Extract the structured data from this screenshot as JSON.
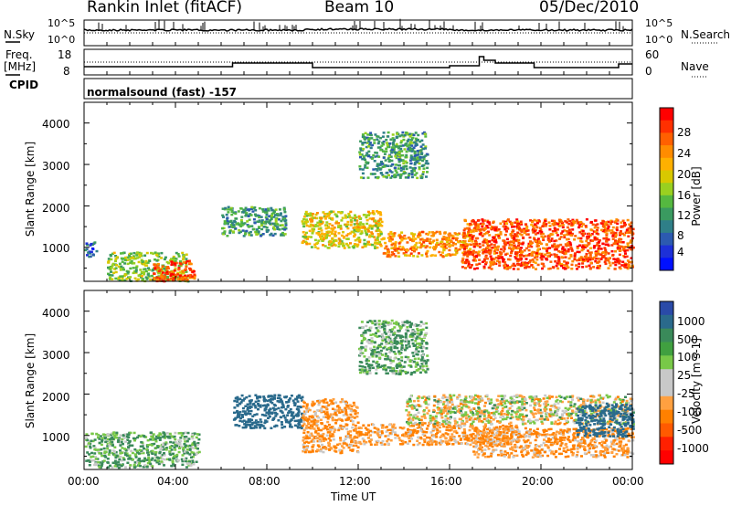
{
  "header": {
    "station": "Rankin Inlet (fitACF)",
    "beam": "Beam 10",
    "date": "05/Dec/2010"
  },
  "noise_panel": {
    "left_label": "N.Sky",
    "left_ticks": [
      "10^5",
      "10^0"
    ],
    "right_ticks": [
      "10^5",
      "10^0"
    ],
    "right_label": "N.Search"
  },
  "freq_panel": {
    "left_label_1": "Freq.",
    "left_label_2": "[MHz]",
    "left_ticks": [
      "18",
      "8"
    ],
    "right_ticks": [
      "60",
      "0"
    ],
    "right_label": "Nave",
    "cpid_label": "CPID"
  },
  "cpid_text": "normalsound (fast) -157",
  "axes": {
    "ylabel": "Slant Range [km]",
    "yticks": [
      "4000",
      "3000",
      "2000",
      "1000"
    ],
    "xticks": [
      "00:00",
      "04:00",
      "08:00",
      "12:00",
      "16:00",
      "20:00",
      "00:00"
    ],
    "xlabel": "Time UT"
  },
  "power_scale": {
    "label": "Power [dB]",
    "ticks": [
      "28",
      "24",
      "20",
      "16",
      "12",
      "8",
      "4"
    ],
    "colors": [
      "#ff0000",
      "#ff3000",
      "#ff6000",
      "#ff8c00",
      "#ffb000",
      "#d8c800",
      "#99d020",
      "#55b840",
      "#3a9a60",
      "#2f7f88",
      "#2c5ab0",
      "#1d30d8",
      "#0010ff"
    ]
  },
  "velocity_scale": {
    "label": "Velocity [m s-1]",
    "ticks": [
      "1000",
      "500",
      "100",
      "25",
      "-25",
      "-100",
      "-500",
      "-1000"
    ],
    "colors": [
      "#2a4aa8",
      "#2a6a8c",
      "#3a8a5a",
      "#40a040",
      "#78c848",
      "#c8c8c8",
      "#c8c8c8",
      "#ffa040",
      "#ff8000",
      "#ff5a00",
      "#ff2000",
      "#ff0000"
    ]
  },
  "chart_data": {
    "type": "heatmap",
    "panels": [
      "Power [dB]",
      "Velocity [m s-1]"
    ],
    "x_range_hours_ut": [
      0,
      24
    ],
    "y_range_km": [
      180,
      4500
    ],
    "power_patches": [
      {
        "t": [
          0.0,
          0.5
        ],
        "r": [
          800,
          1150
        ],
        "power_db": 8
      },
      {
        "t": [
          1.0,
          4.5
        ],
        "r": [
          200,
          900
        ],
        "power_db": 16
      },
      {
        "t": [
          3.0,
          4.8
        ],
        "r": [
          200,
          700
        ],
        "power_db": 28
      },
      {
        "t": [
          6.0,
          8.8
        ],
        "r": [
          1300,
          2000
        ],
        "power_db": 12
      },
      {
        "t": [
          9.5,
          13.0
        ],
        "r": [
          1000,
          1900
        ],
        "power_db": 20
      },
      {
        "t": [
          12.0,
          15.0
        ],
        "r": [
          2700,
          3800
        ],
        "power_db": 12
      },
      {
        "t": [
          13.0,
          17.0
        ],
        "r": [
          800,
          1400
        ],
        "power_db": 24
      },
      {
        "t": [
          16.5,
          24.0
        ],
        "r": [
          500,
          1700
        ],
        "power_db": 28
      }
    ],
    "velocity_patches": [
      {
        "t": [
          0.0,
          5.0
        ],
        "r": [
          250,
          1100
        ],
        "velocity_ms": 100
      },
      {
        "t": [
          6.5,
          9.5
        ],
        "r": [
          1200,
          2000
        ],
        "velocity_ms": 500
      },
      {
        "t": [
          9.5,
          12.0
        ],
        "r": [
          600,
          1900
        ],
        "velocity_ms": -100
      },
      {
        "t": [
          12.0,
          15.0
        ],
        "r": [
          2500,
          3800
        ],
        "velocity_ms": 100
      },
      {
        "t": [
          12.0,
          19.0
        ],
        "r": [
          800,
          1300
        ],
        "velocity_ms": -100
      },
      {
        "t": [
          14.0,
          24.0
        ],
        "r": [
          1300,
          2000
        ],
        "velocity_ms": 0
      },
      {
        "t": [
          17.0,
          24.0
        ],
        "r": [
          500,
          1200
        ],
        "velocity_ms": -100
      },
      {
        "t": [
          21.5,
          24.0
        ],
        "r": [
          1000,
          1800
        ],
        "velocity_ms": 500
      }
    ]
  }
}
